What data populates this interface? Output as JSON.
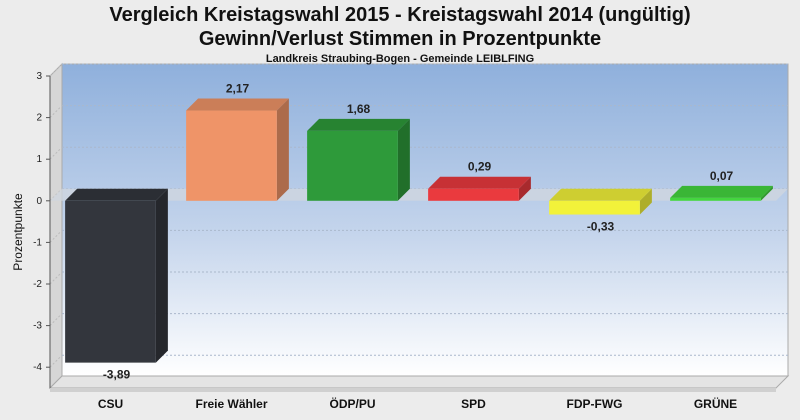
{
  "title_line1": "Vergleich Kreistagswahl 2015 - Kreistagswahl 2014 (ungültig)",
  "title_line2": "Gewinn/Verlust Stimmen in Prozentpunkte",
  "subtitle": "Landkreis Straubing-Bogen - Gemeinde LEIBLFING",
  "chart_data": {
    "type": "bar",
    "title": "Vergleich Kreistagswahl 2015 - Kreistagswahl 2014 (ungültig)",
    "subtitle": "Gewinn/Verlust Stimmen in Prozentpunkte",
    "ylabel": "Prozentpunkte",
    "xlabel": "",
    "ylim": [
      -4.5,
      3
    ],
    "yticks": [
      3,
      2,
      1,
      0,
      -1,
      -2,
      -3,
      -4
    ],
    "ytick_labels": [
      "3",
      "2",
      "1",
      "0",
      "-1",
      "-2",
      "-3",
      "-4"
    ],
    "grid": true,
    "categories": [
      "CSU",
      "Freie Wähler",
      "ÖDP/PU",
      "SPD",
      "FDP-FWG",
      "GRÜNE"
    ],
    "values": [
      -3.89,
      2.17,
      1.68,
      0.29,
      -0.33,
      0.07
    ],
    "value_labels": [
      "-3,89",
      "2,17",
      "1,68",
      "0,29",
      "-0,33",
      "0,07"
    ],
    "colors": [
      "#33363d",
      "#ef9468",
      "#2e9a3a",
      "#ea3a3e",
      "#f2f23a",
      "#44d63f"
    ]
  }
}
